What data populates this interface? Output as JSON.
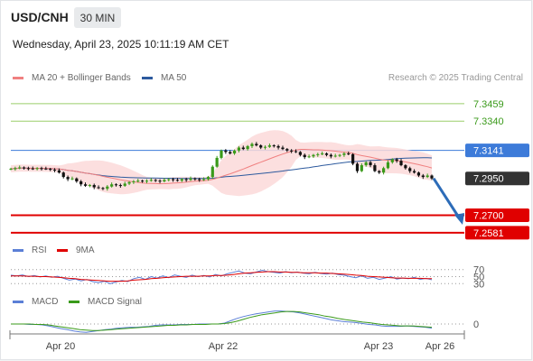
{
  "header": {
    "symbol": "USD/CNH",
    "interval": "30 MIN",
    "timestamp": "Wednesday, April 23, 2025 10:11:19 AM CET"
  },
  "credit": "Research © 2025 Trading Central",
  "legends": {
    "price": [
      {
        "label": "MA 20 + Bollinger Bands",
        "color": "#f08080"
      },
      {
        "label": "MA 50",
        "color": "#2d5a9e"
      }
    ],
    "rsi": [
      {
        "label": "RSI",
        "color": "#5b7fd6"
      },
      {
        "label": "9MA",
        "color": "#e00000"
      }
    ],
    "macd": [
      {
        "label": "MACD",
        "color": "#5b7fd6"
      },
      {
        "label": "MACD Signal",
        "color": "#3a9a1a"
      }
    ]
  },
  "colors": {
    "bull_candle": "#3a9a1a",
    "bear_candle": "#111111",
    "resistance": "#9acd6a",
    "pivot": "#3d7bd9",
    "support": "#e00000",
    "current_price": "#333333",
    "forecast_arrow": "#2d6cb8",
    "bollinger_fill": "#fcd9d9"
  },
  "chart_data": [
    {
      "type": "candlestick",
      "title": "USD/CNH 30 MIN",
      "x_tick_labels": [
        "Apr 20",
        "Apr 22",
        "Apr 23",
        "Apr 26"
      ],
      "ylim": [
        7.258,
        7.355
      ],
      "levels": [
        {
          "label": "7.3459",
          "value": 7.3459,
          "kind": "resistance"
        },
        {
          "label": "7.3340",
          "value": 7.334,
          "kind": "resistance"
        },
        {
          "label": "7.3141",
          "value": 7.3141,
          "kind": "pivot"
        },
        {
          "label": "7.2950",
          "value": 7.295,
          "kind": "last"
        },
        {
          "label": "7.2700",
          "value": 7.27,
          "kind": "support"
        },
        {
          "label": "7.2581",
          "value": 7.2581,
          "kind": "support"
        }
      ],
      "close": [
        7.3016,
        7.302,
        7.3025,
        7.302,
        7.3018,
        7.3015,
        7.302,
        7.3017,
        7.3015,
        7.301,
        7.3005,
        7.299,
        7.296,
        7.2945,
        7.295,
        7.293,
        7.291,
        7.29,
        7.2905,
        7.289,
        7.2885,
        7.288,
        7.2895,
        7.291,
        7.2905,
        7.29,
        7.2915,
        7.2925,
        7.293,
        7.2935,
        7.293,
        7.2935,
        7.294,
        7.2935,
        7.293,
        7.294,
        7.2945,
        7.294,
        7.2935,
        7.2945,
        7.294,
        7.295,
        7.2945,
        7.294,
        7.2945,
        7.296,
        7.303,
        7.309,
        7.314,
        7.313,
        7.312,
        7.314,
        7.316,
        7.315,
        7.317,
        7.3185,
        7.3175,
        7.316,
        7.3165,
        7.3175,
        7.317,
        7.316,
        7.315,
        7.314,
        7.3135,
        7.313,
        7.311,
        7.3095,
        7.31,
        7.311,
        7.3115,
        7.312,
        7.311,
        7.31,
        7.3105,
        7.311,
        7.312,
        7.3115,
        7.305,
        7.3,
        7.304,
        7.306,
        7.304,
        7.3,
        7.299,
        7.302,
        7.306,
        7.308,
        7.307,
        7.304,
        7.302,
        7.3,
        7.299,
        7.297,
        7.296,
        7.297,
        7.295
      ],
      "series": [
        {
          "name": "MA 20 + Bollinger Bands",
          "kind": "ma_bands",
          "period": 20,
          "band_width_sd": 2
        },
        {
          "name": "MA 50",
          "kind": "ma",
          "period": 50
        }
      ]
    },
    {
      "type": "line",
      "title": "RSI",
      "y_tick_labels": [
        "70",
        "50",
        "30"
      ],
      "ylim": [
        0,
        100
      ],
      "series": [
        {
          "name": "RSI",
          "values": [
            54,
            52,
            55,
            50,
            53,
            49,
            52,
            48,
            51,
            45,
            40,
            43,
            38,
            42,
            36,
            33,
            37,
            30,
            35,
            39,
            36,
            44,
            48,
            42,
            50,
            46,
            52,
            47,
            55,
            51,
            48,
            54,
            50,
            53,
            49,
            56,
            52,
            58,
            62,
            66,
            60,
            58,
            63,
            68,
            64,
            62,
            60,
            64,
            61,
            63,
            60,
            58,
            62,
            59,
            57,
            60,
            56,
            54,
            50,
            47,
            52,
            45,
            48,
            42,
            46,
            50,
            43,
            46,
            44,
            48,
            42,
            45,
            41
          ]
        },
        {
          "name": "9MA",
          "values": [
            52,
            52,
            52,
            51,
            51,
            50,
            50,
            49,
            48,
            47,
            45,
            44,
            42,
            41,
            40,
            39,
            38,
            37,
            37,
            37,
            38,
            40,
            41,
            42,
            44,
            45,
            47,
            48,
            49,
            50,
            51,
            51,
            51,
            52,
            52,
            53,
            53,
            54,
            56,
            58,
            60,
            61,
            62,
            63,
            64,
            64,
            63,
            63,
            62,
            62,
            61,
            61,
            61,
            60,
            60,
            59,
            58,
            57,
            56,
            54,
            53,
            51,
            50,
            49,
            48,
            47,
            46,
            46,
            45,
            45,
            45,
            44,
            44
          ]
        }
      ]
    },
    {
      "type": "line",
      "title": "MACD",
      "y_tick_labels": [
        "0"
      ],
      "ylim": [
        -0.0037,
        0.0037
      ],
      "series": [
        {
          "name": "MACD",
          "values": [
            0.0,
            0.0,
            0.0,
            -0.0001,
            -0.0001,
            -0.0002,
            -0.0004,
            -0.0007,
            -0.001,
            -0.0012,
            -0.0015,
            -0.0017,
            -0.0018,
            -0.0016,
            -0.0014,
            -0.0012,
            -0.0011,
            -0.0009,
            -0.0008,
            -0.0007,
            -0.0007,
            -0.0006,
            -0.0005,
            -0.0003,
            -0.0002,
            -0.0002,
            -0.0002,
            -0.0001,
            -0.0001,
            -0.0001,
            0.0,
            0.0,
            0.0,
            0.0,
            0.0002,
            0.0007,
            0.0012,
            0.0016,
            0.0019,
            0.0022,
            0.0024,
            0.0026,
            0.0028,
            0.0028,
            0.0027,
            0.0026,
            0.0024,
            0.0021,
            0.0018,
            0.0015,
            0.0012,
            0.0009,
            0.0007,
            0.0005,
            0.0004,
            0.0003,
            0.0001,
            -0.0001,
            -0.0002,
            -0.0004,
            -0.0005,
            -0.0005,
            -0.0005,
            -0.0004,
            -0.0005,
            -0.0006,
            -0.0007,
            -0.0009
          ]
        },
        {
          "name": "MACD Signal",
          "values": [
            0.0,
            0.0,
            0.0,
            0.0,
            -0.0001,
            -0.0001,
            -0.0002,
            -0.0004,
            -0.0006,
            -0.0008,
            -0.001,
            -0.0012,
            -0.0013,
            -0.0014,
            -0.0014,
            -0.0013,
            -0.0012,
            -0.0011,
            -0.001,
            -0.0009,
            -0.0008,
            -0.0007,
            -0.0006,
            -0.0005,
            -0.0004,
            -0.0003,
            -0.0003,
            -0.0002,
            -0.0002,
            -0.0001,
            -0.0001,
            -0.0001,
            0.0,
            0.0,
            0.0001,
            0.0003,
            0.0006,
            0.001,
            0.0014,
            0.0017,
            0.002,
            0.0022,
            0.0024,
            0.0026,
            0.0027,
            0.0027,
            0.0026,
            0.0024,
            0.0022,
            0.002,
            0.0017,
            0.0015,
            0.0012,
            0.001,
            0.0008,
            0.0006,
            0.0004,
            0.0003,
            0.0001,
            -0.0001,
            -0.0002,
            -0.0003,
            -0.0004,
            -0.0004,
            -0.0004,
            -0.0005,
            -0.0006,
            -0.0007
          ]
        }
      ]
    }
  ]
}
